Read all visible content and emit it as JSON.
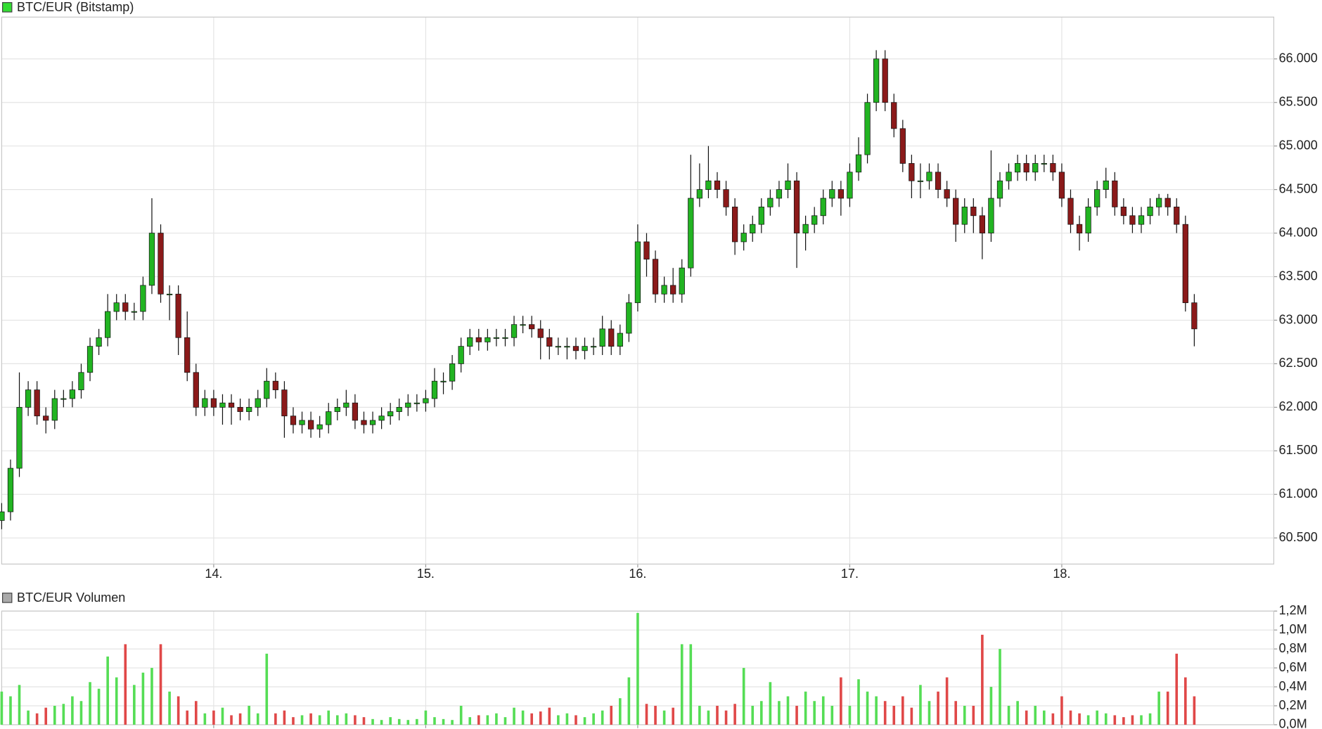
{
  "chart_data": [
    {
      "type": "candlestick",
      "title": "BTC/EUR (Bitstamp)",
      "legend_color": "#33dd33",
      "up_color": "#22b422",
      "down_color": "#8b1a1a",
      "xlim": [
        0,
        144
      ],
      "xticks": [
        {
          "value": 24,
          "label": "14."
        },
        {
          "value": 48,
          "label": "15."
        },
        {
          "value": 72,
          "label": "16."
        },
        {
          "value": 96,
          "label": "17."
        },
        {
          "value": 120,
          "label": "18."
        }
      ],
      "ylim": [
        60200,
        66480
      ],
      "yticks": [
        {
          "value": 60500,
          "label": "60.500"
        },
        {
          "value": 61000,
          "label": "61.000"
        },
        {
          "value": 61500,
          "label": "61.500"
        },
        {
          "value": 62000,
          "label": "62.000"
        },
        {
          "value": 62500,
          "label": "62.500"
        },
        {
          "value": 63000,
          "label": "63.000"
        },
        {
          "value": 63500,
          "label": "63.500"
        },
        {
          "value": 64000,
          "label": "64.000"
        },
        {
          "value": 64500,
          "label": "64.500"
        },
        {
          "value": 65000,
          "label": "65.000"
        },
        {
          "value": 65500,
          "label": "65.500"
        },
        {
          "value": 66000,
          "label": "66.000"
        }
      ],
      "grid": true,
      "x": [
        0,
        1,
        2,
        3,
        4,
        5,
        6,
        7,
        8,
        9,
        10,
        11,
        12,
        13,
        14,
        15,
        16,
        17,
        18,
        19,
        20,
        21,
        22,
        23,
        24,
        25,
        26,
        27,
        28,
        29,
        30,
        31,
        32,
        33,
        34,
        35,
        36,
        37,
        38,
        39,
        40,
        41,
        42,
        43,
        44,
        45,
        46,
        47,
        48,
        49,
        50,
        51,
        52,
        53,
        54,
        55,
        56,
        57,
        58,
        59,
        60,
        61,
        62,
        63,
        64,
        65,
        66,
        67,
        68,
        69,
        70,
        71,
        72,
        73,
        74,
        75,
        76,
        77,
        78,
        79,
        80,
        81,
        82,
        83,
        84,
        85,
        86,
        87,
        88,
        89,
        90,
        91,
        92,
        93,
        94,
        95,
        96,
        97,
        98,
        99,
        100,
        101,
        102,
        103,
        104,
        105,
        106,
        107,
        108,
        109,
        110,
        111,
        112,
        113,
        114,
        115,
        116,
        117,
        118,
        119,
        120,
        121,
        122,
        123,
        124,
        125,
        126,
        127,
        128,
        129,
        130,
        131,
        132,
        133,
        134,
        135
      ],
      "open": [
        60700,
        60800,
        61300,
        62000,
        62200,
        61900,
        61850,
        62100,
        62100,
        62200,
        62400,
        62700,
        62800,
        63100,
        63200,
        63100,
        63100,
        63400,
        64000,
        63300,
        63300,
        62800,
        62400,
        62000,
        62100,
        62000,
        62050,
        62000,
        61950,
        62000,
        62100,
        62300,
        62200,
        61900,
        61800,
        61850,
        61750,
        61800,
        61950,
        62000,
        62050,
        61850,
        61800,
        61850,
        61900,
        61950,
        62000,
        62050,
        62050,
        62100,
        62300,
        62300,
        62500,
        62700,
        62800,
        62750,
        62800,
        62800,
        62800,
        62950,
        62950,
        62900,
        62800,
        62700,
        62700,
        62700,
        62650,
        62700,
        62700,
        62900,
        62700,
        62850,
        63200,
        63900,
        63700,
        63300,
        63400,
        63300,
        63600,
        64400,
        64500,
        64600,
        64500,
        64300,
        63900,
        64000,
        64100,
        64300,
        64400,
        64500,
        64600,
        64000,
        64100,
        64200,
        64400,
        64500,
        64400,
        64700,
        64900,
        65500,
        66000,
        65500,
        65200,
        64800,
        64600,
        64600,
        64700,
        64500,
        64400,
        64100,
        64300,
        64200,
        64000,
        64400,
        64600,
        64700,
        64800,
        64700,
        64800,
        64800,
        64700,
        64400,
        64100,
        64000,
        64300,
        64500,
        64600,
        64300,
        64200,
        64100,
        64200,
        64300,
        64400,
        64300,
        64100,
        63200
      ],
      "high": [
        60900,
        61400,
        62400,
        62300,
        62300,
        62000,
        62200,
        62200,
        62300,
        62500,
        62800,
        62900,
        63300,
        63300,
        63300,
        63200,
        63500,
        64400,
        64100,
        63400,
        63400,
        63100,
        62500,
        62200,
        62200,
        62150,
        62150,
        62100,
        62100,
        62200,
        62450,
        62400,
        62300,
        62000,
        61950,
        61950,
        61900,
        62050,
        62100,
        62200,
        62150,
        61950,
        61950,
        62000,
        62050,
        62100,
        62150,
        62150,
        62200,
        62450,
        62400,
        62600,
        62800,
        62900,
        62900,
        62900,
        62900,
        62900,
        63050,
        63050,
        63050,
        63000,
        62900,
        62800,
        62800,
        62800,
        62800,
        62800,
        63050,
        63000,
        62950,
        63300,
        64100,
        64000,
        63800,
        63500,
        63600,
        63700,
        64900,
        64800,
        65000,
        64700,
        64600,
        64400,
        64100,
        64200,
        64400,
        64500,
        64600,
        64800,
        64700,
        64200,
        64300,
        64500,
        64600,
        64600,
        64800,
        65100,
        65600,
        66100,
        66100,
        65600,
        65300,
        64900,
        64800,
        64800,
        64800,
        64600,
        64500,
        64400,
        64400,
        64300,
        64950,
        64700,
        64800,
        64900,
        64900,
        64900,
        64900,
        64900,
        64800,
        64500,
        64200,
        64400,
        64600,
        64750,
        64700,
        64400,
        64300,
        64300,
        64400,
        64450,
        64450,
        64400,
        64200,
        63300
      ],
      "low": [
        60600,
        60700,
        61200,
        61900,
        61800,
        61700,
        61750,
        62000,
        62000,
        62100,
        62300,
        62600,
        62700,
        63000,
        63000,
        63000,
        63000,
        63300,
        63200,
        63000,
        62600,
        62300,
        61900,
        61900,
        61900,
        61800,
        61800,
        61850,
        61850,
        61900,
        62000,
        62100,
        61650,
        61700,
        61700,
        61650,
        61650,
        61700,
        61850,
        61900,
        61750,
        61700,
        61700,
        61750,
        61800,
        61850,
        61900,
        61950,
        61950,
        62000,
        62150,
        62200,
        62400,
        62600,
        62650,
        62650,
        62700,
        62700,
        62700,
        62850,
        62800,
        62550,
        62550,
        62600,
        62550,
        62550,
        62550,
        62600,
        62600,
        62600,
        62600,
        62750,
        63100,
        63500,
        63200,
        63200,
        63200,
        63200,
        63500,
        64300,
        64400,
        64400,
        64200,
        63750,
        63800,
        63900,
        64000,
        64200,
        64300,
        64400,
        63600,
        63800,
        64000,
        64100,
        64300,
        64200,
        64300,
        64600,
        64800,
        65400,
        65400,
        65100,
        64700,
        64400,
        64400,
        64500,
        64400,
        64300,
        63900,
        64000,
        64000,
        63700,
        63900,
        64300,
        64500,
        64600,
        64600,
        64600,
        64700,
        64600,
        64300,
        64000,
        63800,
        63900,
        64200,
        64400,
        64200,
        64100,
        64000,
        64000,
        64100,
        64200,
        64200,
        64000,
        63100,
        62700
      ],
      "close": [
        60800,
        61300,
        62000,
        62200,
        61900,
        61850,
        62100,
        62100,
        62200,
        62400,
        62700,
        62800,
        63100,
        63200,
        63100,
        63100,
        63400,
        64000,
        63300,
        63300,
        62800,
        62400,
        62000,
        62100,
        62000,
        62050,
        62000,
        61950,
        62000,
        62100,
        62300,
        62200,
        61900,
        61800,
        61850,
        61750,
        61800,
        61950,
        62000,
        62050,
        61850,
        61800,
        61850,
        61900,
        61950,
        62000,
        62050,
        62050,
        62100,
        62300,
        62300,
        62500,
        62700,
        62800,
        62750,
        62800,
        62800,
        62800,
        62950,
        62950,
        62900,
        62800,
        62700,
        62700,
        62700,
        62650,
        62700,
        62700,
        62900,
        62700,
        62850,
        63200,
        63900,
        63700,
        63300,
        63400,
        63300,
        63600,
        64400,
        64500,
        64600,
        64500,
        64300,
        63900,
        64000,
        64100,
        64300,
        64400,
        64500,
        64600,
        64000,
        64100,
        64200,
        64400,
        64500,
        64400,
        64700,
        64900,
        65500,
        66000,
        65500,
        65200,
        64800,
        64600,
        64600,
        64700,
        64500,
        64400,
        64100,
        64300,
        64200,
        64000,
        64400,
        64600,
        64700,
        64800,
        64700,
        64800,
        64800,
        64700,
        64400,
        64100,
        64000,
        64300,
        64500,
        64600,
        64300,
        64200,
        64100,
        64200,
        64300,
        64400,
        64300,
        64100,
        63200,
        62900
      ]
    },
    {
      "type": "bar",
      "title": "BTC/EUR Volumen",
      "legend_color": "#aaaaaa",
      "up_color": "#55dd55",
      "down_color": "#e04848",
      "xlim": [
        0,
        144
      ],
      "xticks": [
        24,
        48,
        72,
        96,
        120
      ],
      "ylim": [
        0,
        1.2
      ],
      "yticks": [
        {
          "value": 0,
          "label": "0,0M"
        },
        {
          "value": 0.2,
          "label": "0,2M"
        },
        {
          "value": 0.4,
          "label": "0,4M"
        },
        {
          "value": 0.6,
          "label": "0,6M"
        },
        {
          "value": 0.8,
          "label": "0,8M"
        },
        {
          "value": 1.0,
          "label": "1,0M"
        },
        {
          "value": 1.2,
          "label": "1,2M"
        }
      ],
      "grid": true,
      "x": [
        0,
        1,
        2,
        3,
        4,
        5,
        6,
        7,
        8,
        9,
        10,
        11,
        12,
        13,
        14,
        15,
        16,
        17,
        18,
        19,
        20,
        21,
        22,
        23,
        24,
        25,
        26,
        27,
        28,
        29,
        30,
        31,
        32,
        33,
        34,
        35,
        36,
        37,
        38,
        39,
        40,
        41,
        42,
        43,
        44,
        45,
        46,
        47,
        48,
        49,
        50,
        51,
        52,
        53,
        54,
        55,
        56,
        57,
        58,
        59,
        60,
        61,
        62,
        63,
        64,
        65,
        66,
        67,
        68,
        69,
        70,
        71,
        72,
        73,
        74,
        75,
        76,
        77,
        78,
        79,
        80,
        81,
        82,
        83,
        84,
        85,
        86,
        87,
        88,
        89,
        90,
        91,
        92,
        93,
        94,
        95,
        96,
        97,
        98,
        99,
        100,
        101,
        102,
        103,
        104,
        105,
        106,
        107,
        108,
        109,
        110,
        111,
        112,
        113,
        114,
        115,
        116,
        117,
        118,
        119,
        120,
        121,
        122,
        123,
        124,
        125,
        126,
        127,
        128,
        129,
        130,
        131,
        132,
        133,
        134,
        135
      ],
      "values": [
        0.35,
        0.3,
        0.42,
        0.15,
        0.12,
        0.18,
        0.2,
        0.22,
        0.3,
        0.25,
        0.45,
        0.38,
        0.72,
        0.5,
        0.85,
        0.42,
        0.55,
        0.6,
        0.85,
        0.35,
        0.3,
        0.15,
        0.25,
        0.12,
        0.15,
        0.18,
        0.1,
        0.12,
        0.2,
        0.12,
        0.75,
        0.12,
        0.15,
        0.08,
        0.1,
        0.12,
        0.1,
        0.15,
        0.1,
        0.12,
        0.1,
        0.08,
        0.06,
        0.05,
        0.08,
        0.06,
        0.05,
        0.06,
        0.15,
        0.08,
        0.06,
        0.05,
        0.2,
        0.08,
        0.1,
        0.1,
        0.12,
        0.08,
        0.18,
        0.15,
        0.12,
        0.14,
        0.18,
        0.1,
        0.12,
        0.1,
        0.08,
        0.12,
        0.15,
        0.2,
        0.28,
        0.5,
        1.18,
        0.22,
        0.2,
        0.15,
        0.18,
        0.85,
        0.85,
        0.2,
        0.15,
        0.2,
        0.15,
        0.22,
        0.6,
        0.2,
        0.25,
        0.45,
        0.25,
        0.3,
        0.2,
        0.35,
        0.25,
        0.3,
        0.2,
        0.5,
        0.2,
        0.48,
        0.35,
        0.3,
        0.25,
        0.2,
        0.3,
        0.18,
        0.42,
        0.25,
        0.35,
        0.5,
        0.25,
        0.2,
        0.2,
        0.95,
        0.4,
        0.8,
        0.2,
        0.25,
        0.15,
        0.2,
        0.15,
        0.12,
        0.3,
        0.15,
        0.12,
        0.1,
        0.15,
        0.12,
        0.1,
        0.08,
        0.1,
        0.1,
        0.12,
        0.35,
        0.35,
        0.75,
        0.5,
        0.3
      ]
    }
  ]
}
